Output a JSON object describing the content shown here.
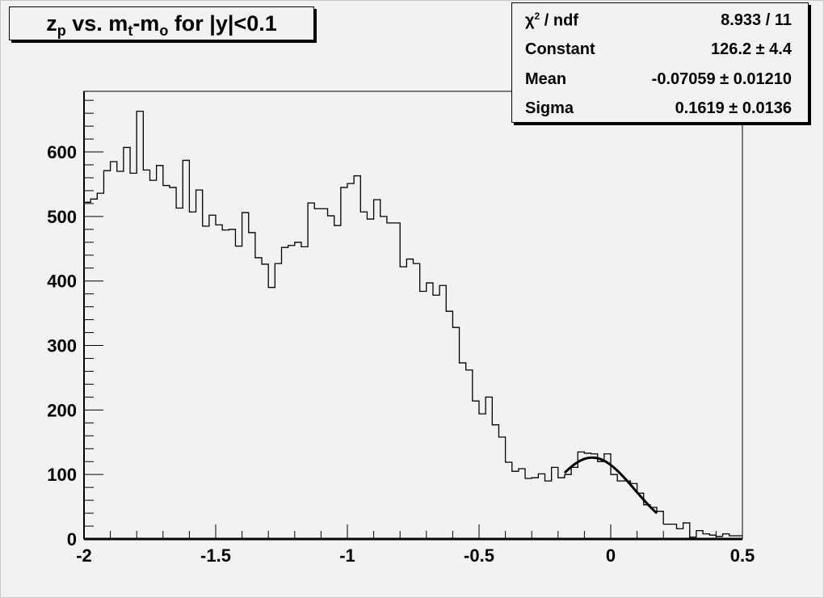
{
  "title": {
    "p1": "z",
    "s1": "p",
    "p2": " vs. m",
    "s2": "t",
    "p3": "-m",
    "s3": "o",
    "p4": " for |y|<0.1"
  },
  "stats": {
    "rows": [
      {
        "label": "χ",
        "label_sup": "2",
        "label_rest": " / ndf",
        "value": "8.933 / 11"
      },
      {
        "label": "Constant",
        "value": "126.2 ± 4.4"
      },
      {
        "label": "Mean",
        "value": "-0.07059 ± 0.01210"
      },
      {
        "label": "Sigma",
        "value": "0.1619 ± 0.0136"
      }
    ]
  },
  "chart_data": {
    "type": "histogram",
    "title": "z_p vs. m_t-m_o for |y|<0.1",
    "xlim": [
      -2,
      0.5
    ],
    "ylim": [
      0,
      694
    ],
    "bin_width": 0.025,
    "x_ticks": [
      "-2",
      "-1.5",
      "-1",
      "-0.5",
      "0",
      "0.5"
    ],
    "y_ticks": [
      "0",
      "100",
      "200",
      "300",
      "400",
      "500",
      "600"
    ],
    "grid": false,
    "legend": "none",
    "values": [
      522,
      527,
      536,
      571,
      585,
      570,
      607,
      567,
      663,
      572,
      556,
      579,
      548,
      545,
      513,
      587,
      507,
      541,
      485,
      502,
      487,
      479,
      480,
      454,
      506,
      475,
      436,
      426,
      390,
      427,
      452,
      455,
      460,
      453,
      521,
      512,
      512,
      501,
      486,
      545,
      551,
      563,
      507,
      496,
      526,
      500,
      490,
      490,
      422,
      434,
      427,
      384,
      397,
      378,
      393,
      353,
      328,
      273,
      262,
      214,
      194,
      220,
      177,
      158,
      119,
      105,
      109,
      94,
      95,
      101,
      90,
      111,
      95,
      100,
      111,
      135,
      133,
      132,
      120,
      132,
      100,
      90,
      90,
      86,
      71,
      53,
      49,
      43,
      23,
      23,
      16,
      25,
      3,
      13,
      8,
      6,
      4,
      8,
      5,
      5
    ],
    "fit": {
      "function": "gaus",
      "constant": 126.2,
      "mean": -0.07059,
      "sigma": 0.1619,
      "range": [
        -0.175,
        0.175
      ]
    },
    "colors": {
      "line": "#000000",
      "background": "#f2f2f2"
    }
  }
}
